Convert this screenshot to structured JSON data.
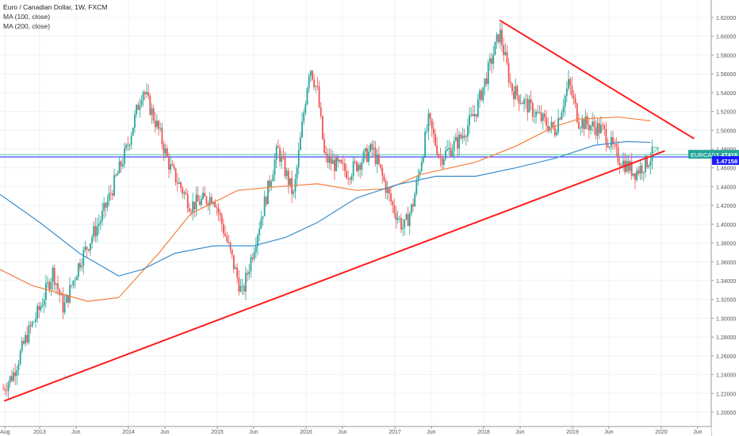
{
  "header": {
    "title": "Euro / Canadian Dollar, 1W, FXCM",
    "indicators": [
      "MA (100, close)",
      "MA (200, close)"
    ]
  },
  "colors": {
    "up": "#26a69a",
    "down": "#ef5350",
    "ma100": "#f57f3a",
    "ma200": "#3a8fd0",
    "trend": "#ff1a1a",
    "symbol_badge": "#26a69a",
    "price_line": "#1a1aff"
  },
  "chart_data": {
    "type": "candlestick",
    "symbol": "EURCAD",
    "last_price": "1.47416",
    "line_price": "1.47158",
    "ylim": [
      1.19,
      1.63
    ],
    "xlim": [
      2012.6,
      2020.6
    ],
    "y_ticks": [
      "1.20000",
      "1.22000",
      "1.24000",
      "1.26000",
      "1.28000",
      "1.30000",
      "1.32000",
      "1.34000",
      "1.36000",
      "1.38000",
      "1.40000",
      "1.42000",
      "1.44000",
      "1.46000",
      "1.48000",
      "1.50000",
      "1.52000",
      "1.54000",
      "1.56000",
      "1.58000",
      "1.60000",
      "1.62000"
    ],
    "x_ticks": [
      {
        "t": 2012.61,
        "label": "Aug"
      },
      {
        "t": 2013.0,
        "label": "2013"
      },
      {
        "t": 2013.41,
        "label": "Jun"
      },
      {
        "t": 2014.0,
        "label": "2014"
      },
      {
        "t": 2014.41,
        "label": "Jun"
      },
      {
        "t": 2015.0,
        "label": "2015"
      },
      {
        "t": 2015.41,
        "label": "Jun"
      },
      {
        "t": 2016.0,
        "label": "2016"
      },
      {
        "t": 2016.41,
        "label": "Jun"
      },
      {
        "t": 2017.0,
        "label": "2017"
      },
      {
        "t": 2017.41,
        "label": "Jun"
      },
      {
        "t": 2018.0,
        "label": "2018"
      },
      {
        "t": 2018.41,
        "label": "Jun"
      },
      {
        "t": 2019.0,
        "label": "2019"
      },
      {
        "t": 2019.41,
        "label": "Jun"
      },
      {
        "t": 2020.0,
        "label": "2020"
      },
      {
        "t": 2020.41,
        "label": "Jun"
      }
    ],
    "price_path": [
      [
        2012.59,
        1.225
      ],
      [
        2012.7,
        1.24
      ],
      [
        2012.85,
        1.28
      ],
      [
        2013.0,
        1.31
      ],
      [
        2013.15,
        1.35
      ],
      [
        2013.27,
        1.31
      ],
      [
        2013.45,
        1.36
      ],
      [
        2013.71,
        1.41
      ],
      [
        2013.98,
        1.48
      ],
      [
        2014.16,
        1.545
      ],
      [
        2014.34,
        1.5
      ],
      [
        2014.47,
        1.46
      ],
      [
        2014.7,
        1.42
      ],
      [
        2014.96,
        1.43
      ],
      [
        2015.1,
        1.385
      ],
      [
        2015.28,
        1.325
      ],
      [
        2015.5,
        1.41
      ],
      [
        2015.68,
        1.48
      ],
      [
        2015.86,
        1.43
      ],
      [
        2016.04,
        1.57
      ],
      [
        2016.13,
        1.54
      ],
      [
        2016.21,
        1.47
      ],
      [
        2016.48,
        1.455
      ],
      [
        2016.75,
        1.48
      ],
      [
        2016.97,
        1.42
      ],
      [
        2017.1,
        1.395
      ],
      [
        2017.2,
        1.42
      ],
      [
        2017.38,
        1.51
      ],
      [
        2017.51,
        1.47
      ],
      [
        2017.73,
        1.49
      ],
      [
        2017.91,
        1.52
      ],
      [
        2018.09,
        1.575
      ],
      [
        2018.18,
        1.605
      ],
      [
        2018.31,
        1.545
      ],
      [
        2018.45,
        1.53
      ],
      [
        2018.67,
        1.51
      ],
      [
        2018.8,
        1.5
      ],
      [
        2018.96,
        1.55
      ],
      [
        2019.07,
        1.51
      ],
      [
        2019.34,
        1.5
      ],
      [
        2019.52,
        1.47
      ],
      [
        2019.7,
        1.455
      ],
      [
        2019.83,
        1.465
      ],
      [
        2019.9,
        1.474
      ]
    ],
    "series": [
      {
        "name": "MA (100, close)",
        "points": [
          [
            2012.55,
            1.352
          ],
          [
            2012.91,
            1.335
          ],
          [
            2013.54,
            1.318
          ],
          [
            2013.89,
            1.322
          ],
          [
            2014.34,
            1.369
          ],
          [
            2014.7,
            1.411
          ],
          [
            2015.23,
            1.436
          ],
          [
            2015.68,
            1.44
          ],
          [
            2016.13,
            1.443
          ],
          [
            2016.57,
            1.436
          ],
          [
            2016.93,
            1.438
          ],
          [
            2017.29,
            1.453
          ],
          [
            2017.91,
            1.466
          ],
          [
            2018.36,
            1.483
          ],
          [
            2018.8,
            1.504
          ],
          [
            2019.07,
            1.512
          ],
          [
            2019.52,
            1.514
          ],
          [
            2019.88,
            1.51
          ]
        ]
      },
      {
        "name": "MA (200, close)",
        "points": [
          [
            2012.55,
            1.432
          ],
          [
            2013.0,
            1.402
          ],
          [
            2013.45,
            1.369
          ],
          [
            2013.89,
            1.345
          ],
          [
            2014.16,
            1.352
          ],
          [
            2014.52,
            1.369
          ],
          [
            2014.96,
            1.377
          ],
          [
            2015.41,
            1.377
          ],
          [
            2015.77,
            1.386
          ],
          [
            2016.13,
            1.402
          ],
          [
            2016.57,
            1.428
          ],
          [
            2017.02,
            1.442
          ],
          [
            2017.46,
            1.451
          ],
          [
            2017.91,
            1.451
          ],
          [
            2018.36,
            1.46
          ],
          [
            2018.8,
            1.47
          ],
          [
            2019.25,
            1.484
          ],
          [
            2019.61,
            1.488
          ],
          [
            2019.88,
            1.487
          ]
        ]
      }
    ],
    "trendlines": [
      {
        "name": "support",
        "from": [
          2012.6,
          1.212
        ],
        "to": [
          2020.04,
          1.478
        ]
      },
      {
        "name": "resistance",
        "from": [
          2018.18,
          1.617
        ],
        "to": [
          2020.37,
          1.491
        ]
      }
    ],
    "horizontal_lines": [
      1.474,
      1.4716
    ]
  }
}
